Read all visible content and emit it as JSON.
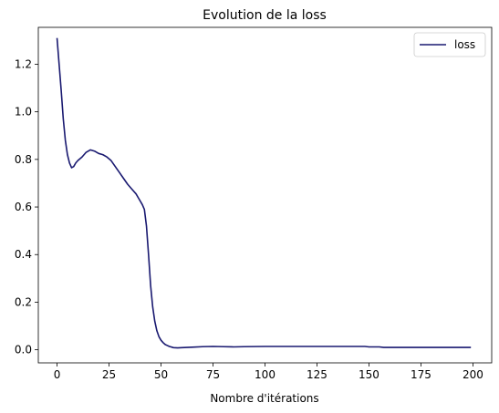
{
  "chart_data": {
    "type": "line",
    "title": "Evolution de la loss",
    "xlabel": "Nombre d'itérations",
    "ylabel": "",
    "xlim": [
      -9,
      209
    ],
    "ylim": [
      -0.055,
      1.355
    ],
    "xticks": [
      0,
      25,
      50,
      75,
      100,
      125,
      150,
      175,
      200
    ],
    "yticks": [
      0.0,
      0.2,
      0.4,
      0.6,
      0.8,
      1.0,
      1.2
    ],
    "ytick_labels": [
      "0.0",
      "0.2",
      "0.4",
      "0.6",
      "0.8",
      "1.0",
      "1.2"
    ],
    "grid": false,
    "legend": "top-right",
    "series": [
      {
        "name": "loss",
        "color": "#191970",
        "x": [
          0,
          1,
          2,
          3,
          4,
          5,
          6,
          7,
          8,
          9,
          10,
          12,
          14,
          16,
          18,
          20,
          22,
          24,
          26,
          28,
          30,
          32,
          34,
          36,
          38,
          39,
          40,
          41,
          42,
          43,
          44,
          45,
          46,
          47,
          48,
          49,
          50,
          51,
          52,
          53,
          54,
          56,
          58,
          60,
          65,
          70,
          75,
          80,
          85,
          90,
          100,
          120,
          140,
          148,
          150,
          155,
          157,
          160,
          170,
          180,
          190,
          199
        ],
        "y": [
          1.31,
          1.2,
          1.09,
          0.97,
          0.88,
          0.82,
          0.785,
          0.765,
          0.77,
          0.785,
          0.795,
          0.81,
          0.83,
          0.84,
          0.835,
          0.825,
          0.82,
          0.81,
          0.795,
          0.77,
          0.745,
          0.72,
          0.695,
          0.675,
          0.655,
          0.64,
          0.625,
          0.61,
          0.59,
          0.52,
          0.4,
          0.27,
          0.18,
          0.12,
          0.08,
          0.055,
          0.04,
          0.03,
          0.022,
          0.018,
          0.014,
          0.009,
          0.008,
          0.009,
          0.011,
          0.013,
          0.014,
          0.013,
          0.012,
          0.013,
          0.014,
          0.014,
          0.014,
          0.014,
          0.012,
          0.012,
          0.01,
          0.01,
          0.01,
          0.01,
          0.01,
          0.01
        ]
      }
    ]
  }
}
